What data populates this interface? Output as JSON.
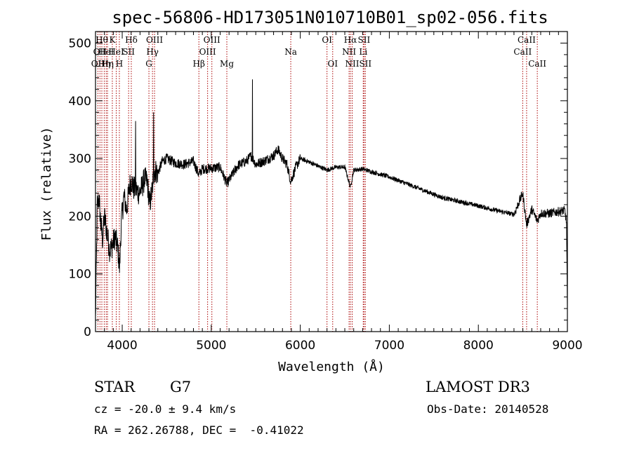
{
  "chart_data": {
    "type": "line",
    "title": "spec-56806-HD173051N010710B01_sp02-056.fits",
    "xlabel": "Wavelength (Å)",
    "ylabel": "Flux (relative)",
    "xlim": [
      3700,
      9000
    ],
    "ylim": [
      0,
      520
    ],
    "xticks": [
      4000,
      5000,
      6000,
      7000,
      8000,
      9000
    ],
    "yticks": [
      0,
      100,
      200,
      300,
      400,
      500
    ],
    "spectrum_anchors": {
      "x": [
        3700,
        3720,
        3740,
        3760,
        3780,
        3800,
        3830,
        3860,
        3890,
        3920,
        3950,
        3970,
        3990,
        4020,
        4050,
        4080,
        4100,
        4130,
        4160,
        4190,
        4220,
        4250,
        4280,
        4310,
        4340,
        4360,
        4400,
        4450,
        4500,
        4600,
        4700,
        4800,
        4861,
        4900,
        5000,
        5100,
        5175,
        5300,
        5400,
        5450,
        5500,
        5600,
        5700,
        5750,
        5800,
        5850,
        5893,
        5950,
        6000,
        6100,
        6200,
        6300,
        6400,
        6500,
        6563,
        6600,
        6700,
        6800,
        7000,
        7200,
        7400,
        7600,
        7800,
        8000,
        8200,
        8400,
        8498,
        8542,
        8600,
        8662,
        8700,
        8800,
        8900,
        8970,
        8990,
        9000
      ],
      "y": [
        20,
        220,
        230,
        185,
        160,
        200,
        170,
        140,
        150,
        165,
        145,
        110,
        190,
        235,
        210,
        250,
        262,
        248,
        245,
        240,
        250,
        265,
        260,
        220,
        250,
        280,
        275,
        295,
        300,
        292,
        290,
        295,
        272,
        282,
        283,
        285,
        256,
        288,
        296,
        305,
        290,
        296,
        305,
        316,
        300,
        290,
        260,
        285,
        300,
        294,
        287,
        280,
        285,
        285,
        250,
        280,
        282,
        277,
        268,
        256,
        244,
        232,
        225,
        218,
        210,
        203,
        240,
        185,
        212,
        192,
        205,
        205,
        208,
        210,
        190,
        40
      ]
    },
    "emission_peaks": [
      {
        "x": 4150,
        "y": 365
      },
      {
        "x": 4352,
        "y": 380
      },
      {
        "x": 5462,
        "y": 437
      }
    ],
    "line_markers": [
      {
        "x": 3727,
        "label": "OII",
        "row": 2
      },
      {
        "x": 3750,
        "label": "OII",
        "row": 1
      },
      {
        "x": 3771,
        "label": "Hθ",
        "row": 0
      },
      {
        "x": 3798,
        "label": "Hη",
        "row": 2
      },
      {
        "x": 3820,
        "label": "HeI",
        "row": 1
      },
      {
        "x": 3835,
        "label": "Hη",
        "row": 2
      },
      {
        "x": 3889,
        "label": "K",
        "row": 0
      },
      {
        "x": 3933,
        "label": "HeI",
        "row": 1
      },
      {
        "x": 3968,
        "label": "H",
        "row": 2
      },
      {
        "x": 4072,
        "label": "SII",
        "row": 1
      },
      {
        "x": 4102,
        "label": "Hδ",
        "row": 0
      },
      {
        "x": 4300,
        "label": "G",
        "row": 2
      },
      {
        "x": 4340,
        "label": "Hγ",
        "row": 1
      },
      {
        "x": 4363,
        "label": "OIII",
        "row": 0
      },
      {
        "x": 4861,
        "label": "Hβ",
        "row": 2
      },
      {
        "x": 4959,
        "label": "OIII",
        "row": 1
      },
      {
        "x": 5007,
        "label": "OIII",
        "row": 0
      },
      {
        "x": 5175,
        "label": "Mg",
        "row": 2
      },
      {
        "x": 5893,
        "label": "Na",
        "row": 1
      },
      {
        "x": 6300,
        "label": "OI",
        "row": 0
      },
      {
        "x": 6364,
        "label": "OI",
        "row": 2
      },
      {
        "x": 6548,
        "label": "NII",
        "row": 1
      },
      {
        "x": 6563,
        "label": "Hα",
        "row": 0
      },
      {
        "x": 6583,
        "label": "NII",
        "row": 2
      },
      {
        "x": 6707,
        "label": "Li",
        "row": 1
      },
      {
        "x": 6716,
        "label": "SII",
        "row": 0
      },
      {
        "x": 6731,
        "label": "SII",
        "row": 2
      },
      {
        "x": 8498,
        "label": "CaII",
        "row": 1
      },
      {
        "x": 8542,
        "label": "CaII",
        "row": 0
      },
      {
        "x": 8662,
        "label": "CaII",
        "row": 2
      }
    ]
  },
  "info": {
    "class": "STAR",
    "subclass": "G7",
    "survey": "LAMOST DR3",
    "cz": "cz = -20.0 ± 9.4 km/s",
    "obs_date": "Obs-Date: 20140528",
    "coords": "RA = 262.26788, DEC =  -0.41022"
  },
  "colors": {
    "spectrum": "#000000",
    "marker": "#aa0000"
  }
}
